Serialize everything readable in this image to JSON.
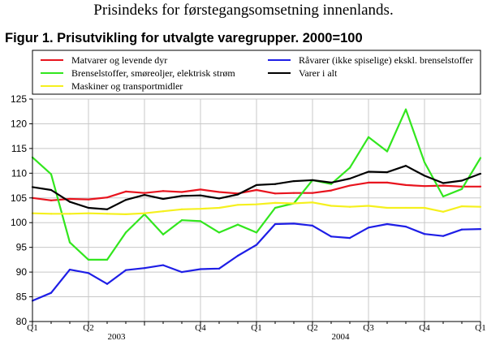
{
  "header": {
    "top_title": "Prisindeks for førstegangsomsetning innenlands.",
    "figure_title": "Figur 1. Prisutvikling for utvalgte varegrupper. 2000=100"
  },
  "chart_data": {
    "type": "line",
    "title": "Figur 1. Prisutvikling for utvalgte varegrupper. 2000=100",
    "xlabel": "",
    "ylabel": "",
    "ylim": [
      80,
      125
    ],
    "yticks": [
      80,
      85,
      90,
      95,
      100,
      105,
      110,
      115,
      120,
      125
    ],
    "grid": true,
    "legend_position": "top",
    "quarter_labels": [
      {
        "index": 0,
        "label": "Q1"
      },
      {
        "index": 6,
        "label": "Q2"
      },
      {
        "index": 18,
        "label": "Q4"
      },
      {
        "index": 24,
        "label": "Q1"
      },
      {
        "index": 30,
        "label": "Q2"
      },
      {
        "index": 36,
        "label": "Q3"
      },
      {
        "index": 42,
        "label": "Q4"
      },
      {
        "index": 48,
        "label": "Q1"
      }
    ],
    "year_labels": [
      {
        "index": 9,
        "label": "2003"
      },
      {
        "index": 33,
        "label": "2004"
      }
    ],
    "x": [
      0,
      2,
      4,
      6,
      8,
      10,
      12,
      14,
      16,
      18,
      20,
      22,
      24,
      26,
      28,
      30,
      32,
      34,
      36,
      38,
      40,
      42,
      44,
      46,
      48
    ],
    "series": [
      {
        "name": "Matvarer og levende dyr",
        "color": "#e8141e",
        "values": [
          105.0,
          104.5,
          104.8,
          104.7,
          105.1,
          106.3,
          106.0,
          106.4,
          106.2,
          106.7,
          106.2,
          105.9,
          106.6,
          105.9,
          106.0,
          106.0,
          106.5,
          107.5,
          108.1,
          108.1,
          107.6,
          107.4,
          107.5,
          107.3,
          107.3
        ]
      },
      {
        "name": "Brenselstoffer, smøreoljer, elektrisk strøm",
        "color": "#32e61e",
        "values": [
          113.2,
          109.8,
          96.0,
          92.5,
          92.5,
          98.0,
          101.7,
          97.6,
          100.5,
          100.3,
          98.0,
          99.6,
          98.0,
          103.0,
          103.9,
          108.6,
          107.8,
          111.1,
          117.3,
          114.4,
          122.9,
          112.2,
          105.3,
          106.8,
          113.1
        ]
      },
      {
        "name": "Maskiner og transportmidler",
        "color": "#f5f01e",
        "values": [
          101.9,
          101.8,
          101.8,
          101.9,
          101.8,
          101.7,
          101.9,
          102.3,
          102.7,
          102.8,
          103.0,
          103.6,
          103.7,
          104.0,
          103.9,
          104.1,
          103.4,
          103.2,
          103.4,
          103.0,
          103.0,
          103.0,
          102.2,
          103.3,
          103.2
        ]
      },
      {
        "name": "Råvarer (ikke spiselige) ekskl. brenselstoffer",
        "color": "#1e1ee6",
        "values": [
          84.2,
          85.8,
          90.5,
          89.8,
          87.6,
          90.4,
          90.8,
          91.4,
          90.0,
          90.6,
          90.7,
          93.3,
          95.5,
          99.7,
          99.8,
          99.4,
          97.2,
          96.9,
          99.0,
          99.7,
          99.2,
          97.7,
          97.3,
          98.6,
          98.7
        ]
      },
      {
        "name": "Varer i alt",
        "color": "#000000",
        "values": [
          107.2,
          106.6,
          104.2,
          103.0,
          102.7,
          104.6,
          105.6,
          104.8,
          105.4,
          105.5,
          104.9,
          105.7,
          107.6,
          107.8,
          108.4,
          108.6,
          108.1,
          108.9,
          110.3,
          110.2,
          111.5,
          109.5,
          108.0,
          108.5,
          109.9
        ]
      }
    ]
  }
}
